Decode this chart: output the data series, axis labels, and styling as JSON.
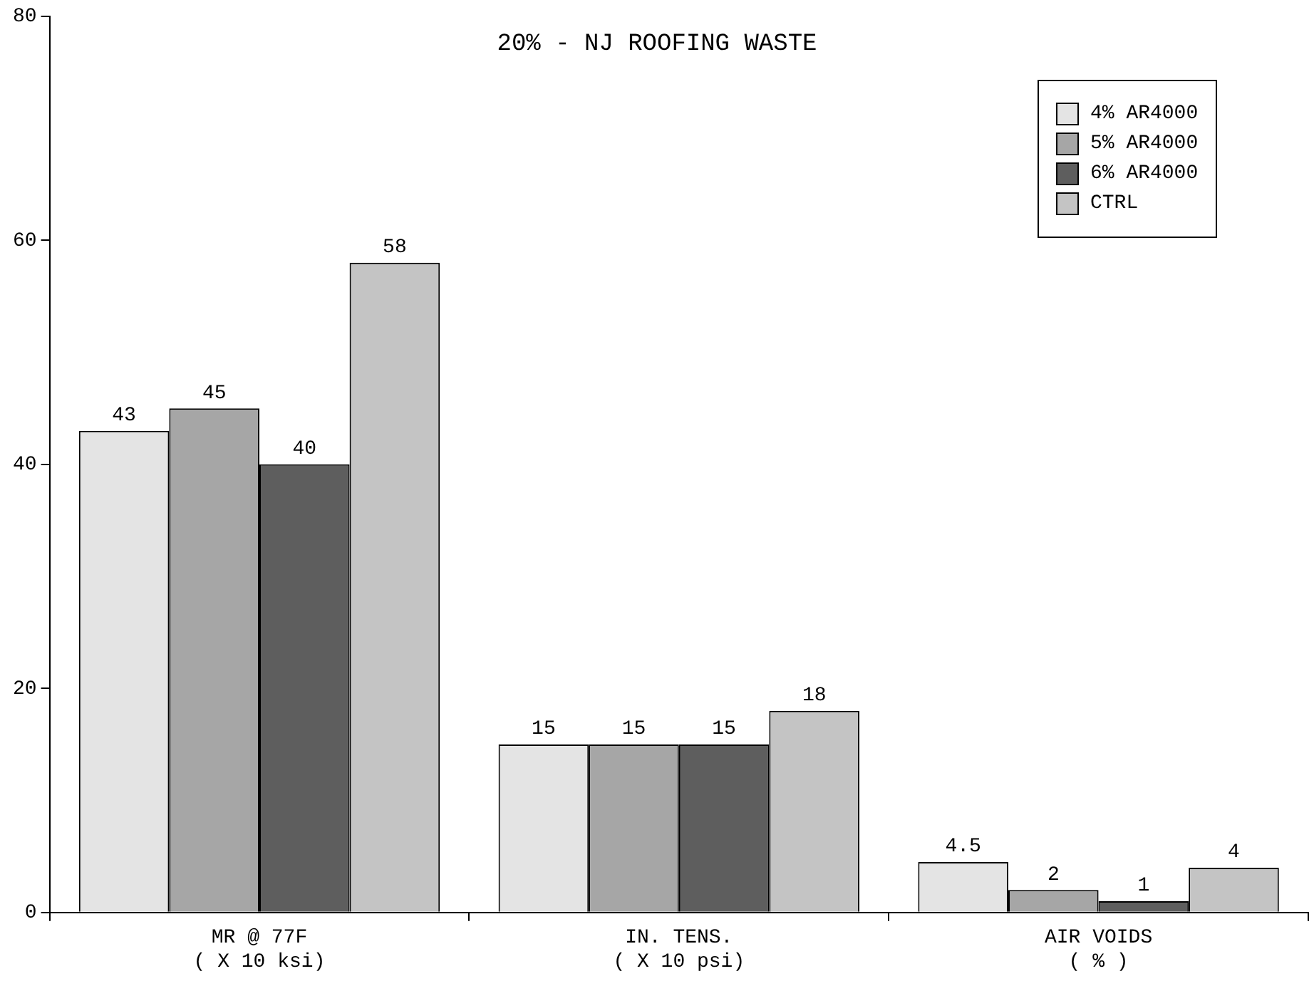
{
  "chart_data": {
    "type": "bar",
    "title": "20% - NJ ROOFING WASTE",
    "categories": [
      "MR @ 77F\n( X 10 ksi)",
      "IN. TENS.\n( X 10 psi)",
      "AIR VOIDS\n( % )"
    ],
    "series": [
      {
        "name": "4% AR4000",
        "color": "#e4e4e4",
        "values": [
          43,
          15,
          4.5
        ]
      },
      {
        "name": "5% AR4000",
        "color": "#a6a6a6",
        "values": [
          45,
          15,
          2
        ]
      },
      {
        "name": "6% AR4000",
        "color": "#5e5e5e",
        "values": [
          40,
          15,
          1
        ]
      },
      {
        "name": "CTRL",
        "color": "#c4c4c4",
        "values": [
          58,
          18,
          4
        ]
      }
    ],
    "ylim": [
      0,
      80
    ],
    "yticks": [
      0,
      20,
      40,
      60,
      80
    ],
    "grid": false,
    "legend": "right",
    "data_labels": true
  }
}
